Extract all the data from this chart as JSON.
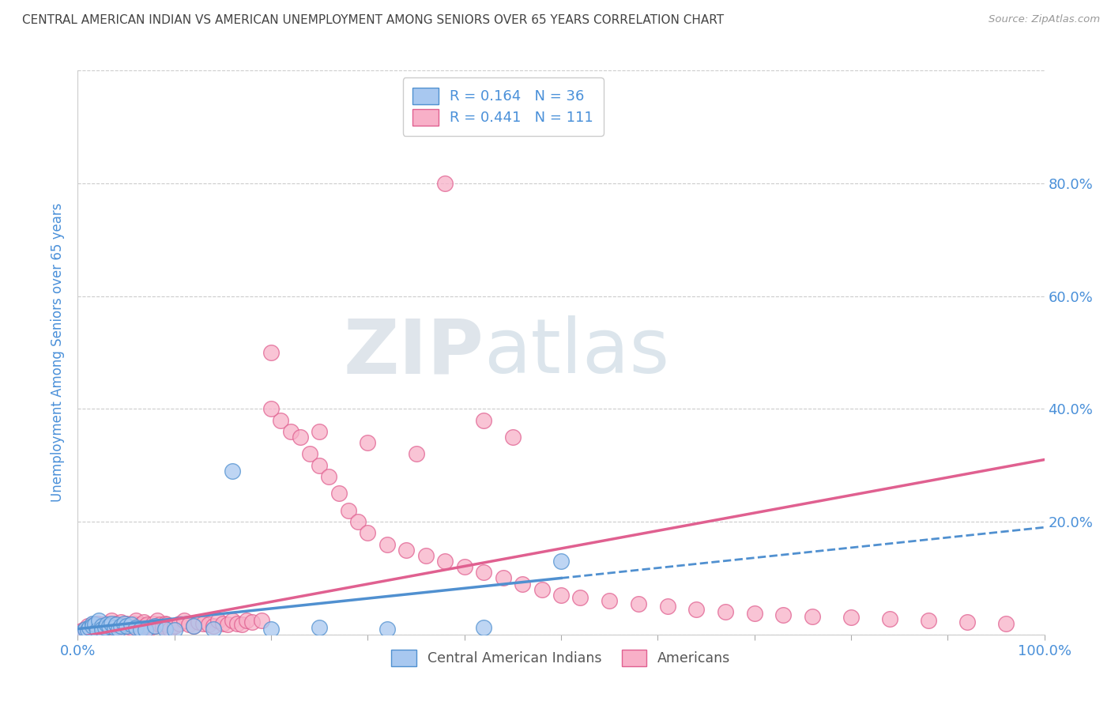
{
  "title": "CENTRAL AMERICAN INDIAN VS AMERICAN UNEMPLOYMENT AMONG SENIORS OVER 65 YEARS CORRELATION CHART",
  "source": "Source: ZipAtlas.com",
  "ylabel": "Unemployment Among Seniors over 65 years",
  "xlim": [
    0,
    1.0
  ],
  "ylim": [
    0,
    1.0
  ],
  "xtick_pos": [
    0.0,
    0.1,
    0.2,
    0.3,
    0.4,
    0.5,
    0.6,
    0.7,
    0.8,
    0.9,
    1.0
  ],
  "xticklabels": [
    "0.0%",
    "",
    "",
    "",
    "",
    "",
    "",
    "",
    "",
    "",
    "100.0%"
  ],
  "ytick_pos": [
    0.0,
    0.2,
    0.4,
    0.6,
    0.8,
    1.0
  ],
  "yticklabels_right": [
    "",
    "20.0%",
    "40.0%",
    "60.0%",
    "80.0%",
    ""
  ],
  "legend_line1": "R = 0.164   N = 36",
  "legend_line2": "R = 0.441   N = 111",
  "blue_fill": "#a8c8f0",
  "blue_edge": "#5090d0",
  "pink_fill": "#f8b0c8",
  "pink_edge": "#e06090",
  "blue_line_color": "#5090d0",
  "pink_line_color": "#e06090",
  "title_color": "#444444",
  "axis_label_color": "#4a90d9",
  "watermark_color": "#c8d8e8",
  "blue_scatter_x": [
    0.005,
    0.008,
    0.01,
    0.012,
    0.015,
    0.015,
    0.018,
    0.02,
    0.022,
    0.025,
    0.025,
    0.028,
    0.03,
    0.032,
    0.035,
    0.038,
    0.04,
    0.042,
    0.045,
    0.048,
    0.05,
    0.055,
    0.06,
    0.065,
    0.07,
    0.08,
    0.09,
    0.1,
    0.12,
    0.14,
    0.16,
    0.2,
    0.25,
    0.32,
    0.42,
    0.5
  ],
  "blue_scatter_y": [
    0.005,
    0.01,
    0.008,
    0.012,
    0.02,
    0.015,
    0.018,
    0.008,
    0.025,
    0.015,
    0.01,
    0.012,
    0.018,
    0.015,
    0.02,
    0.012,
    0.018,
    0.01,
    0.015,
    0.02,
    0.015,
    0.018,
    0.012,
    0.01,
    0.008,
    0.015,
    0.01,
    0.008,
    0.015,
    0.01,
    0.29,
    0.01,
    0.012,
    0.01,
    0.012,
    0.13
  ],
  "pink_scatter_x": [
    0.002,
    0.005,
    0.008,
    0.01,
    0.01,
    0.012,
    0.015,
    0.015,
    0.018,
    0.018,
    0.02,
    0.02,
    0.022,
    0.025,
    0.025,
    0.025,
    0.028,
    0.03,
    0.03,
    0.032,
    0.035,
    0.035,
    0.038,
    0.04,
    0.04,
    0.042,
    0.045,
    0.045,
    0.048,
    0.05,
    0.05,
    0.052,
    0.055,
    0.055,
    0.058,
    0.06,
    0.06,
    0.065,
    0.065,
    0.068,
    0.07,
    0.072,
    0.075,
    0.078,
    0.08,
    0.082,
    0.085,
    0.088,
    0.09,
    0.092,
    0.095,
    0.1,
    0.105,
    0.11,
    0.115,
    0.12,
    0.125,
    0.13,
    0.135,
    0.14,
    0.145,
    0.15,
    0.155,
    0.16,
    0.165,
    0.17,
    0.175,
    0.18,
    0.19,
    0.2,
    0.21,
    0.22,
    0.23,
    0.24,
    0.25,
    0.26,
    0.27,
    0.28,
    0.29,
    0.3,
    0.32,
    0.34,
    0.36,
    0.38,
    0.4,
    0.42,
    0.44,
    0.46,
    0.48,
    0.5,
    0.52,
    0.55,
    0.58,
    0.61,
    0.64,
    0.67,
    0.7,
    0.73,
    0.76,
    0.8,
    0.84,
    0.88,
    0.92,
    0.96,
    0.2,
    0.25,
    0.3,
    0.35,
    0.38,
    0.42,
    0.45
  ],
  "pink_scatter_y": [
    0.005,
    0.008,
    0.01,
    0.015,
    0.008,
    0.012,
    0.01,
    0.018,
    0.015,
    0.008,
    0.012,
    0.02,
    0.015,
    0.01,
    0.018,
    0.008,
    0.012,
    0.015,
    0.02,
    0.018,
    0.012,
    0.025,
    0.01,
    0.015,
    0.02,
    0.018,
    0.012,
    0.022,
    0.015,
    0.01,
    0.02,
    0.015,
    0.018,
    0.012,
    0.02,
    0.015,
    0.025,
    0.018,
    0.01,
    0.022,
    0.015,
    0.018,
    0.012,
    0.02,
    0.015,
    0.025,
    0.018,
    0.015,
    0.02,
    0.018,
    0.01,
    0.015,
    0.02,
    0.025,
    0.018,
    0.015,
    0.022,
    0.02,
    0.018,
    0.015,
    0.025,
    0.02,
    0.018,
    0.025,
    0.02,
    0.018,
    0.025,
    0.022,
    0.025,
    0.5,
    0.38,
    0.36,
    0.35,
    0.32,
    0.3,
    0.28,
    0.25,
    0.22,
    0.2,
    0.18,
    0.16,
    0.15,
    0.14,
    0.13,
    0.12,
    0.11,
    0.1,
    0.09,
    0.08,
    0.07,
    0.065,
    0.06,
    0.055,
    0.05,
    0.045,
    0.04,
    0.038,
    0.035,
    0.032,
    0.03,
    0.028,
    0.025,
    0.022,
    0.02,
    0.4,
    0.36,
    0.34,
    0.32,
    0.8,
    0.38,
    0.35
  ]
}
